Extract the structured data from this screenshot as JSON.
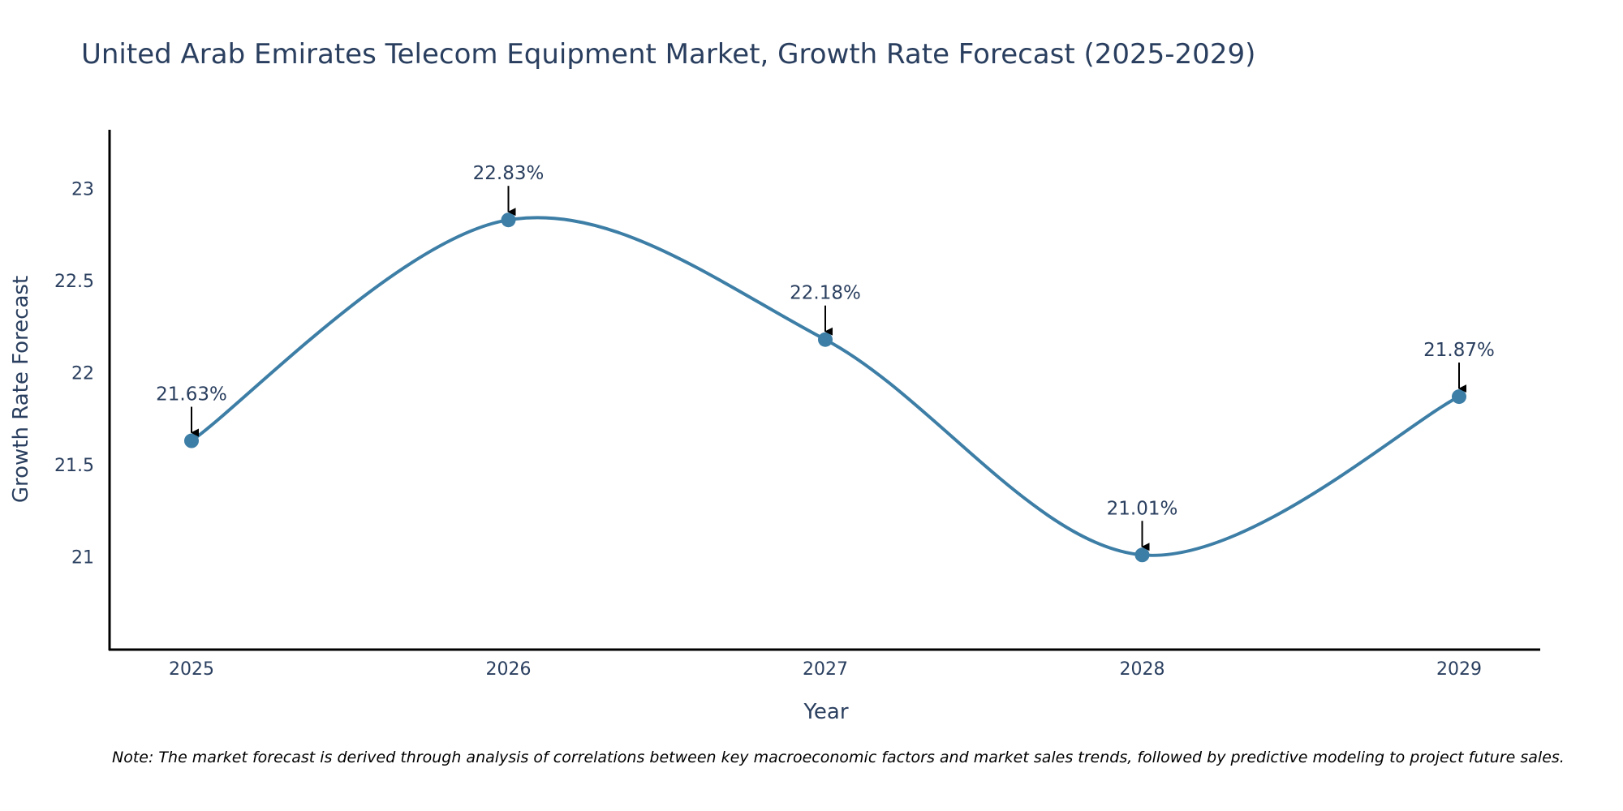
{
  "chart_data": {
    "type": "line",
    "title": "United Arab Emirates Telecom Equipment Market, Growth Rate Forecast (2025-2029)",
    "xlabel": "Year",
    "ylabel": "Growth Rate Forecast",
    "categories": [
      "2025",
      "2026",
      "2027",
      "2028",
      "2029"
    ],
    "series": [
      {
        "name": "Growth Rate Forecast",
        "values": [
          21.63,
          22.83,
          22.18,
          21.01,
          21.87
        ],
        "labels": [
          "21.63%",
          "22.83%",
          "22.18%",
          "21.01%",
          "21.87%"
        ]
      }
    ],
    "ylim": [
      20.5,
      23.32
    ],
    "yticks": [
      21,
      21.5,
      22,
      22.5,
      23
    ],
    "ytick_labels": [
      "21",
      "21.5",
      "22",
      "22.5",
      "23"
    ],
    "grid": false,
    "line_color": "#3d7ea6",
    "marker_color": "#3d7ea6",
    "annotation_color": "#000000",
    "note": "Note: The market forecast is derived through analysis of correlations between key macroeconomic factors and market sales trends, followed by predictive modeling to project future sales."
  }
}
